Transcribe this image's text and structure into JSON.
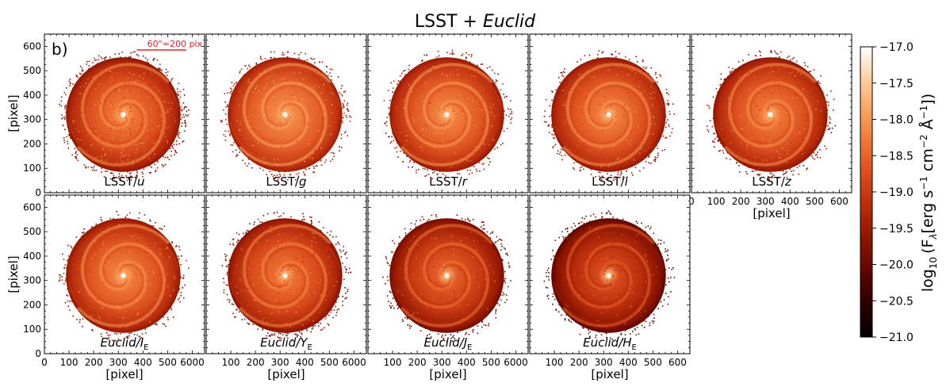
{
  "title": {
    "main": "LSST + ",
    "italic": "Euclid"
  },
  "panel_letter": "b)",
  "scale_bar_label": "60\"=200 pix",
  "colors": {
    "scale_bar": "#e8202a",
    "cmap": [
      "#000000",
      "#2a0000",
      "#5c0500",
      "#8c1400",
      "#b52a0a",
      "#d94a1c",
      "#ef7434",
      "#f9a260",
      "#fdcfa0",
      "#ffffff"
    ]
  },
  "chart_data": {
    "type": "heatmap",
    "description_units": "pixel",
    "x_ticks": [
      "0",
      "100",
      "200",
      "300",
      "400",
      "500",
      "600"
    ],
    "x_ticks_edge_merged": [
      "100",
      "200",
      "300",
      "400",
      "500",
      "6000"
    ],
    "y_ticks": [
      "0",
      "100",
      "200",
      "300",
      "400",
      "500",
      "600"
    ],
    "xlabel": "[pixel]",
    "ylabel": "[pixel]",
    "xlim": [
      0,
      650
    ],
    "ylim": [
      0,
      650
    ],
    "colorbar": {
      "label_prefix": "log",
      "label_sub": "10",
      "label_rest": "(F",
      "label_lambda": "λ",
      "label_units": "[erg s",
      "label_sup1": "−1",
      "label_cm": " cm",
      "label_sup2": "−2",
      "label_A": " Å",
      "label_sup3": "−1",
      "label_end": "])",
      "ticks": [
        "−17.0",
        "−17.5",
        "−18.0",
        "−18.5",
        "−19.0",
        "−19.5",
        "−20.0",
        "−20.5",
        "−21.0"
      ],
      "range": [
        -21.0,
        -17.0
      ]
    },
    "panels": [
      {
        "name": "LSST/",
        "band": "u",
        "sub": "",
        "italic_name": false,
        "brightness": 0.62,
        "speckle": 0.9
      },
      {
        "name": "LSST/",
        "band": "g",
        "sub": "",
        "italic_name": false,
        "brightness": 0.66,
        "speckle": 0.35
      },
      {
        "name": "LSST/",
        "band": "r",
        "sub": "",
        "italic_name": false,
        "brightness": 0.64,
        "speckle": 0.25
      },
      {
        "name": "LSST/",
        "band": "i",
        "sub": "",
        "italic_name": false,
        "brightness": 0.63,
        "speckle": 0.25
      },
      {
        "name": "LSST/",
        "band": "z",
        "sub": "",
        "italic_name": false,
        "brightness": 0.62,
        "speckle": 0.3
      },
      {
        "name": "Euclid",
        "band": "I",
        "sub": "E",
        "italic_name": true,
        "brightness": 0.63,
        "speckle": 0.2
      },
      {
        "name": "Euclid",
        "band": "Y",
        "sub": "E",
        "italic_name": true,
        "brightness": 0.6,
        "speckle": 0.45
      },
      {
        "name": "Euclid",
        "band": "J",
        "sub": "E",
        "italic_name": true,
        "brightness": 0.55,
        "speckle": 0.25
      },
      {
        "name": "Euclid",
        "band": "H",
        "sub": "E",
        "italic_name": true,
        "brightness": 0.5,
        "speckle": 0.25
      }
    ]
  }
}
